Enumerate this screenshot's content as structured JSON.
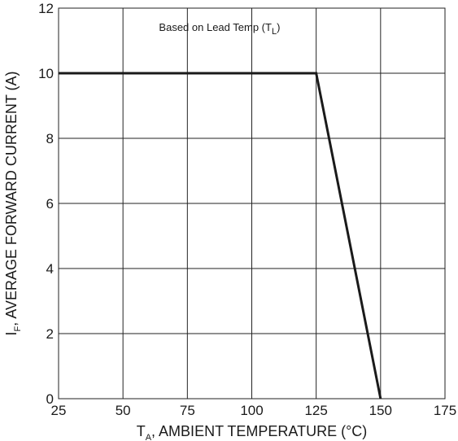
{
  "chart_data": {
    "type": "line",
    "xlabel": {
      "prefix": "T",
      "sub": "A",
      "text": ", AMBIENT TEMPERATURE (°C)"
    },
    "ylabel": {
      "prefix": "I",
      "sub": "F",
      "text": ", AVERAGE FORWARD CURRENT (A)"
    },
    "xlim": [
      25,
      175
    ],
    "ylim": [
      0,
      12
    ],
    "x_ticks": [
      25,
      50,
      75,
      100,
      125,
      150,
      175
    ],
    "y_ticks": [
      0,
      2,
      4,
      6,
      8,
      10,
      12
    ],
    "grid": true,
    "annotation": {
      "text": "Based on Lead Temp (T",
      "sub": "L",
      "suffix": ")"
    },
    "series": [
      {
        "x": [
          25,
          125,
          150
        ],
        "y": [
          10,
          10,
          0
        ]
      }
    ]
  }
}
